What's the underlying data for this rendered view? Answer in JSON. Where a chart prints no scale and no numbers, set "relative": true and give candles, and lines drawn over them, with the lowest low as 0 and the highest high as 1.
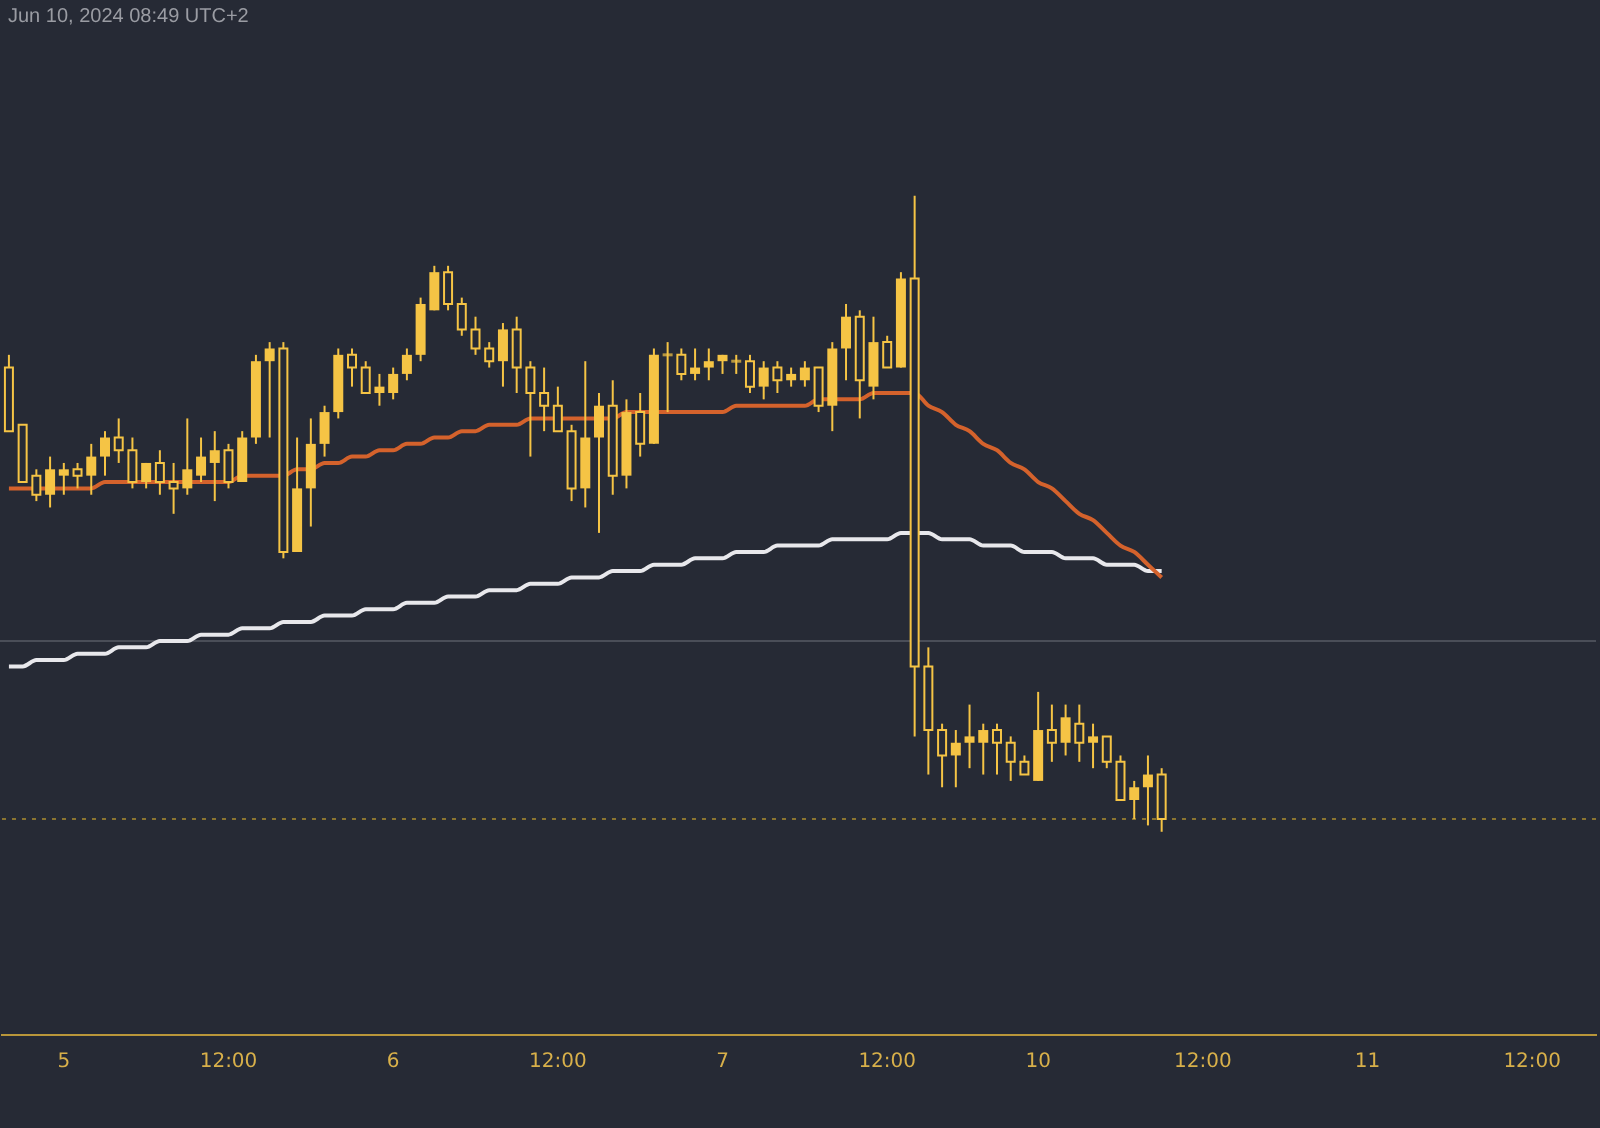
{
  "chart_data": {
    "type": "candlestick",
    "relative": true,
    "color": "#f5c445",
    "tick_labels": "x",
    "annotations": [
      "Jun 10, 2024 08:49 UTC+2"
    ],
    "categories": [
      null,
      null,
      null,
      null,
      "5",
      null,
      null,
      null,
      null,
      null,
      null,
      null,
      null,
      null,
      null,
      null,
      "12:00",
      null,
      null,
      null,
      null,
      null,
      null,
      null,
      null,
      null,
      null,
      null,
      "6",
      null,
      null,
      null,
      null,
      null,
      null,
      null,
      null,
      null,
      null,
      null,
      "12:00",
      null,
      null,
      null,
      null,
      null,
      null,
      null,
      null,
      null,
      null,
      null,
      "7",
      null,
      null,
      null,
      null,
      null,
      null,
      null,
      null,
      null,
      null,
      null,
      "12:00",
      null,
      null,
      null,
      null,
      null,
      null,
      null,
      null,
      null,
      null,
      "10",
      null,
      null,
      null,
      null,
      null,
      null,
      null,
      null,
      null,
      null,
      null,
      "12:00",
      null,
      null,
      null,
      null,
      null,
      null,
      null,
      null,
      null,
      null,
      null,
      "11",
      null,
      null,
      null,
      null,
      null,
      null,
      null,
      null,
      null,
      null,
      null,
      "12:00",
      null,
      null,
      null,
      null
    ],
    "ohlc": [
      [
        0.73,
        0.75,
        0.63,
        0.63
      ],
      [
        0.64,
        0.64,
        0.55,
        0.55
      ],
      [
        0.56,
        0.57,
        0.52,
        0.53
      ],
      [
        0.53,
        0.59,
        0.51,
        0.57
      ],
      [
        0.56,
        0.58,
        0.53,
        0.57
      ],
      [
        0.57,
        0.58,
        0.54,
        0.56
      ],
      [
        0.56,
        0.61,
        0.53,
        0.59
      ],
      [
        0.59,
        0.63,
        0.56,
        0.62
      ],
      [
        0.62,
        0.65,
        0.58,
        0.6
      ],
      [
        0.6,
        0.62,
        0.54,
        0.55
      ],
      [
        0.55,
        0.58,
        0.54,
        0.58
      ],
      [
        0.58,
        0.6,
        0.53,
        0.55
      ],
      [
        0.55,
        0.58,
        0.5,
        0.54
      ],
      [
        0.54,
        0.65,
        0.53,
        0.57
      ],
      [
        0.56,
        0.62,
        0.55,
        0.59
      ],
      [
        0.58,
        0.63,
        0.52,
        0.6
      ],
      [
        0.6,
        0.61,
        0.54,
        0.55
      ],
      [
        0.55,
        0.63,
        0.55,
        0.62
      ],
      [
        0.62,
        0.75,
        0.61,
        0.74
      ],
      [
        0.74,
        0.77,
        0.62,
        0.76
      ],
      [
        0.76,
        0.77,
        0.43,
        0.44
      ],
      [
        0.44,
        0.62,
        0.44,
        0.54
      ],
      [
        0.54,
        0.65,
        0.48,
        0.61
      ],
      [
        0.61,
        0.67,
        0.59,
        0.66
      ],
      [
        0.66,
        0.76,
        0.65,
        0.75
      ],
      [
        0.75,
        0.76,
        0.7,
        0.73
      ],
      [
        0.73,
        0.74,
        0.69,
        0.69
      ],
      [
        0.69,
        0.72,
        0.67,
        0.7
      ],
      [
        0.69,
        0.73,
        0.68,
        0.72
      ],
      [
        0.72,
        0.76,
        0.71,
        0.75
      ],
      [
        0.75,
        0.84,
        0.74,
        0.83
      ],
      [
        0.82,
        0.89,
        0.82,
        0.88
      ],
      [
        0.88,
        0.89,
        0.82,
        0.83
      ],
      [
        0.83,
        0.84,
        0.78,
        0.79
      ],
      [
        0.79,
        0.81,
        0.75,
        0.76
      ],
      [
        0.76,
        0.77,
        0.73,
        0.74
      ],
      [
        0.74,
        0.8,
        0.7,
        0.79
      ],
      [
        0.79,
        0.81,
        0.69,
        0.73
      ],
      [
        0.73,
        0.74,
        0.59,
        0.69
      ],
      [
        0.69,
        0.73,
        0.63,
        0.67
      ],
      [
        0.67,
        0.7,
        0.63,
        0.63
      ],
      [
        0.63,
        0.64,
        0.52,
        0.54
      ],
      [
        0.54,
        0.74,
        0.51,
        0.62
      ],
      [
        0.62,
        0.69,
        0.47,
        0.67
      ],
      [
        0.67,
        0.71,
        0.53,
        0.56
      ],
      [
        0.56,
        0.68,
        0.54,
        0.66
      ],
      [
        0.66,
        0.69,
        0.59,
        0.61
      ],
      [
        0.61,
        0.76,
        0.61,
        0.75
      ],
      [
        0.75,
        0.77,
        0.66,
        0.75
      ],
      [
        0.75,
        0.76,
        0.71,
        0.72
      ],
      [
        0.72,
        0.76,
        0.71,
        0.73
      ],
      [
        0.73,
        0.76,
        0.71,
        0.74
      ],
      [
        0.74,
        0.75,
        0.72,
        0.75
      ],
      [
        0.74,
        0.75,
        0.72,
        0.74
      ],
      [
        0.74,
        0.75,
        0.69,
        0.7
      ],
      [
        0.7,
        0.74,
        0.68,
        0.73
      ],
      [
        0.73,
        0.74,
        0.69,
        0.71
      ],
      [
        0.71,
        0.73,
        0.7,
        0.72
      ],
      [
        0.71,
        0.74,
        0.7,
        0.73
      ],
      [
        0.73,
        0.73,
        0.66,
        0.67
      ],
      [
        0.67,
        0.77,
        0.63,
        0.76
      ],
      [
        0.76,
        0.83,
        0.71,
        0.81
      ],
      [
        0.81,
        0.82,
        0.65,
        0.71
      ],
      [
        0.7,
        0.81,
        0.68,
        0.77
      ],
      [
        0.77,
        0.78,
        0.73,
        0.73
      ],
      [
        0.73,
        0.88,
        0.73,
        0.87
      ],
      [
        0.87,
        1,
        0.15,
        0.26
      ],
      [
        0.26,
        0.29,
        0.09,
        0.16
      ],
      [
        0.16,
        0.17,
        0.07,
        0.12
      ],
      [
        0.12,
        0.16,
        0.07,
        0.14
      ],
      [
        0.14,
        0.2,
        0.1,
        0.15
      ],
      [
        0.14,
        0.17,
        0.09,
        0.16
      ],
      [
        0.16,
        0.17,
        0.09,
        0.14
      ],
      [
        0.14,
        0.15,
        0.08,
        0.11
      ],
      [
        0.11,
        0.12,
        0.09,
        0.09
      ],
      [
        0.08,
        0.22,
        0.08,
        0.16
      ],
      [
        0.16,
        0.2,
        0.11,
        0.14
      ],
      [
        0.14,
        0.2,
        0.12,
        0.18
      ],
      [
        0.17,
        0.2,
        0.11,
        0.14
      ],
      [
        0.14,
        0.17,
        0.1,
        0.15
      ],
      [
        0.15,
        0.15,
        0.1,
        0.11
      ],
      [
        0.11,
        0.12,
        0.05,
        0.05
      ],
      [
        0.05,
        0.08,
        0.02,
        0.07
      ],
      [
        0.07,
        0.12,
        0.01,
        0.09
      ],
      [
        0.09,
        0.1,
        0,
        0.02
      ],
      null,
      null,
      null,
      null,
      null,
      null,
      null,
      null,
      null,
      null,
      null,
      null,
      null,
      null,
      null,
      null,
      null,
      null,
      null,
      null,
      null,
      null,
      null,
      null,
      null,
      null,
      null,
      null,
      null,
      null,
      null
    ],
    "series": [
      {
        "type": "line",
        "color": "#e8e8ec",
        "values": [
          0.26,
          0.26,
          0.27,
          0.27,
          0.27,
          0.28,
          0.28,
          0.28,
          0.29,
          0.29,
          0.29,
          0.3,
          0.3,
          0.3,
          0.31,
          0.31,
          0.31,
          0.32,
          0.32,
          0.32,
          0.33,
          0.33,
          0.33,
          0.34,
          0.34,
          0.34,
          0.35,
          0.35,
          0.35,
          0.36,
          0.36,
          0.36,
          0.37,
          0.37,
          0.37,
          0.38,
          0.38,
          0.38,
          0.39,
          0.39,
          0.39,
          0.4,
          0.4,
          0.4,
          0.41,
          0.41,
          0.41,
          0.42,
          0.42,
          0.42,
          0.43,
          0.43,
          0.43,
          0.44,
          0.44,
          0.44,
          0.45,
          0.45,
          0.45,
          0.45,
          0.46,
          0.46,
          0.46,
          0.46,
          0.46,
          0.47,
          0.47,
          0.47,
          0.46,
          0.46,
          0.46,
          0.45,
          0.45,
          0.45,
          0.44,
          0.44,
          0.44,
          0.43,
          0.43,
          0.43,
          0.42,
          0.42,
          0.42,
          0.41,
          0.41,
          null,
          null,
          null,
          null,
          null,
          null,
          null,
          null,
          null,
          null,
          null,
          null,
          null,
          null,
          null,
          null,
          null,
          null,
          null,
          null,
          null,
          null,
          null,
          null,
          null,
          null,
          null,
          null,
          null,
          null,
          null
        ]
      },
      {
        "type": "line",
        "color": "#d4622c",
        "values": [
          0.54,
          0.54,
          0.54,
          0.54,
          0.54,
          0.54,
          0.54,
          0.55,
          0.55,
          0.55,
          0.55,
          0.55,
          0.55,
          0.55,
          0.55,
          0.55,
          0.55,
          0.56,
          0.56,
          0.56,
          0.56,
          0.57,
          0.57,
          0.58,
          0.58,
          0.59,
          0.59,
          0.6,
          0.6,
          0.61,
          0.61,
          0.62,
          0.62,
          0.63,
          0.63,
          0.64,
          0.64,
          0.64,
          0.65,
          0.65,
          0.65,
          0.65,
          0.65,
          0.65,
          0.65,
          0.66,
          0.66,
          0.66,
          0.66,
          0.66,
          0.66,
          0.66,
          0.66,
          0.67,
          0.67,
          0.67,
          0.67,
          0.67,
          0.67,
          0.68,
          0.68,
          0.68,
          0.68,
          0.69,
          0.69,
          0.69,
          0.69,
          0.67,
          0.66,
          0.64,
          0.63,
          0.61,
          0.6,
          0.58,
          0.57,
          0.55,
          0.54,
          0.52,
          0.5,
          0.49,
          0.47,
          0.45,
          0.44,
          0.42,
          0.4,
          null,
          null,
          null,
          null,
          null,
          null,
          null,
          null,
          null,
          null,
          null,
          null,
          null,
          null,
          null,
          null,
          null,
          null,
          null,
          null,
          null,
          null,
          null,
          null,
          null,
          null,
          null,
          null,
          null,
          null,
          null
        ]
      }
    ],
    "ref_lines": [
      {
        "axis": "y",
        "value": 0.3,
        "color": "#4a4e58",
        "line_style": "solid"
      },
      {
        "axis": "y",
        "value": 0.02,
        "color": "#8a7430",
        "line_style": "dotted"
      }
    ]
  }
}
